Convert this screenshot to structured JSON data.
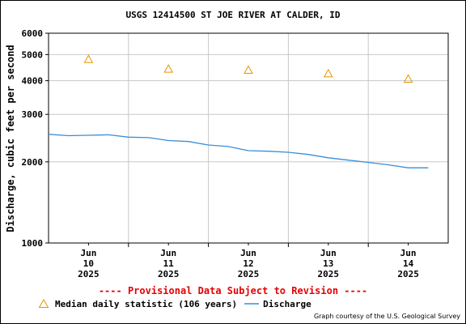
{
  "title": "USGS 12414500 ST JOE RIVER AT CALDER, ID",
  "provisional_notice": "---- Provisional Data Subject to Revision ----",
  "legend": {
    "median_label": "Median daily statistic (106 years)",
    "discharge_label": "Discharge"
  },
  "credit": "Graph courtesy of the U.S. Geological Survey",
  "colors": {
    "discharge": "#3a8ed8",
    "median": "#e69500",
    "provisional": "#e60000",
    "grid": "#c8c8c8"
  },
  "chart_data": {
    "type": "line",
    "ylabel": "Discharge, cubic feet per second",
    "y_scale": "log",
    "ylim": [
      1000,
      6000
    ],
    "yticks": [
      1000,
      2000,
      3000,
      4000,
      5000,
      6000
    ],
    "ytick_labels": [
      "1000",
      "2000",
      "3000",
      "4000",
      "5000",
      "6000"
    ],
    "xlim": [
      "2025-06-09 12:00",
      "2025-06-14 12:00"
    ],
    "x_ticks": [
      {
        "date": "2025-06-10",
        "lines": [
          "Jun",
          "10",
          "2025"
        ]
      },
      {
        "date": "2025-06-11",
        "lines": [
          "Jun",
          "11",
          "2025"
        ]
      },
      {
        "date": "2025-06-12",
        "lines": [
          "Jun",
          "12",
          "2025"
        ]
      },
      {
        "date": "2025-06-13",
        "lines": [
          "Jun",
          "13",
          "2025"
        ]
      },
      {
        "date": "2025-06-14",
        "lines": [
          "Jun",
          "14",
          "2025"
        ]
      }
    ],
    "grid": true,
    "series": [
      {
        "name": "Median daily statistic (106 years)",
        "marker": "triangle",
        "x": [
          "2025-06-10",
          "2025-06-11",
          "2025-06-12",
          "2025-06-13",
          "2025-06-14"
        ],
        "values": [
          4800,
          4420,
          4380,
          4250,
          4060
        ]
      },
      {
        "name": "Discharge",
        "marker": "line",
        "x": [
          "2025-06-09 12:00",
          "2025-06-09 18:00",
          "2025-06-10 00:00",
          "2025-06-10 06:00",
          "2025-06-10 12:00",
          "2025-06-10 18:00",
          "2025-06-11 00:00",
          "2025-06-11 06:00",
          "2025-06-11 12:00",
          "2025-06-11 18:00",
          "2025-06-12 00:00",
          "2025-06-12 06:00",
          "2025-06-12 12:00",
          "2025-06-12 18:00",
          "2025-06-13 00:00",
          "2025-06-13 06:00",
          "2025-06-13 12:00",
          "2025-06-13 18:00",
          "2025-06-14 00:00",
          "2025-06-14 06:00"
        ],
        "values": [
          2530,
          2500,
          2510,
          2520,
          2470,
          2460,
          2400,
          2380,
          2310,
          2280,
          2200,
          2190,
          2170,
          2130,
          2070,
          2030,
          1990,
          1950,
          1900,
          1900
        ]
      }
    ]
  }
}
